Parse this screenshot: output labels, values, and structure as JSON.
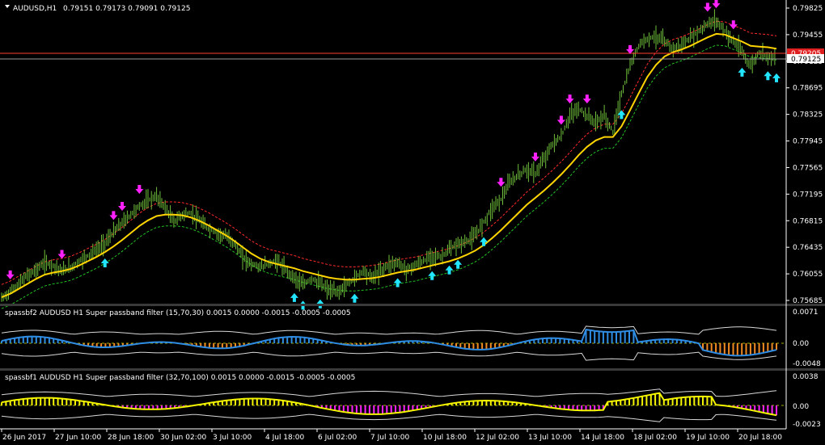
{
  "header": {
    "symbol": "AUDUSD,H1",
    "ohlc": "0.79151 0.79173 0.79091 0.79125"
  },
  "colors": {
    "background": "#000000",
    "candle": "#6fbf3a",
    "ma_yellow": "#ffd400",
    "band_upper": "#ff2a2a",
    "band_lower": "#22c022",
    "arrow_down": "#ff22ff",
    "arrow_up": "#22e5ff",
    "price_line": "#ff3b2f",
    "bid_line": "#9a9a9a",
    "sub1_pos": "#2f8de4",
    "sub1_neg": "#f08a22",
    "sub2_pos": "#f5f500",
    "sub2_neg": "#ff22ff",
    "envelope": "#d8d8d8",
    "zero_line": "#a0b000"
  },
  "main_axis": {
    "labels": [
      "0.79825",
      "0.79455",
      "0.79125",
      "0.78695",
      "0.78325",
      "0.77945",
      "0.77565",
      "0.77195",
      "0.76815",
      "0.76435",
      "0.76055",
      "0.75685"
    ],
    "price_tag_red": "0.79205",
    "price_tag_current": "0.79125"
  },
  "sub1": {
    "title": "spassbf2 AUDUSD H1 Super passband filter (15,70,30) 0.0015 0.0000 -0.0015 -0.0005 -0.0005",
    "axis_labels": [
      "0.0071",
      "0.00",
      "-0.0048"
    ]
  },
  "sub2": {
    "title": "spassbf1 AUDUSD H1 Super passband filter (32,70,100) 0.0015 0.0000 -0.0015 -0.0005 -0.0005",
    "axis_labels": [
      "0.0038",
      "0.00",
      "-0.0023"
    ]
  },
  "time_axis": [
    "26 Jun 2017",
    "27 Jun 10:00",
    "28 Jun 18:00",
    "30 Jun 02:00",
    "3 Jul 10:00",
    "4 Jul 18:00",
    "6 Jul 02:00",
    "7 Jul 10:00",
    "10 Jul 18:00",
    "12 Jul 02:00",
    "13 Jul 10:00",
    "14 Jul 18:00",
    "18 Jul 02:00",
    "19 Jul 10:00",
    "20 Jul 18:00"
  ],
  "chart_data": {
    "type": "line",
    "title": "AUDUSD,H1",
    "ylim": [
      0.75685,
      0.79825
    ],
    "x_labels": [
      "26 Jun 2017",
      "27 Jun 10:00",
      "28 Jun 18:00",
      "30 Jun 02:00",
      "3 Jul 10:00",
      "4 Jul 18:00",
      "6 Jul 02:00",
      "7 Jul 10:00",
      "10 Jul 18:00",
      "12 Jul 02:00",
      "13 Jul 10:00",
      "14 Jul 18:00",
      "18 Jul 02:00",
      "19 Jul 10:00",
      "20 Jul 18:00"
    ],
    "price": [
      0.7571,
      0.7581,
      0.7592,
      0.7604,
      0.7612,
      0.7622,
      0.7618,
      0.761,
      0.7615,
      0.7624,
      0.7632,
      0.764,
      0.765,
      0.7665,
      0.7678,
      0.769,
      0.7702,
      0.771,
      0.7716,
      0.77,
      0.768,
      0.769,
      0.7692,
      0.7681,
      0.767,
      0.7664,
      0.766,
      0.765,
      0.763,
      0.762,
      0.7616,
      0.762,
      0.7625,
      0.7611,
      0.7601,
      0.759,
      0.76,
      0.7592,
      0.7583,
      0.758,
      0.759,
      0.76,
      0.7611,
      0.7601,
      0.761,
      0.762,
      0.7622,
      0.7612,
      0.7618,
      0.7624,
      0.7632,
      0.763,
      0.764,
      0.7648,
      0.7652,
      0.766,
      0.768,
      0.77,
      0.7712,
      0.7735,
      0.7746,
      0.7754,
      0.7748,
      0.7769,
      0.779,
      0.78,
      0.783,
      0.784,
      0.783,
      0.782,
      0.783,
      0.7807,
      0.786,
      0.79,
      0.793,
      0.794,
      0.7942,
      0.7935,
      0.7925,
      0.793,
      0.794,
      0.795,
      0.796,
      0.7965,
      0.795,
      0.7935,
      0.792,
      0.79,
      0.792,
      0.7915,
      0.7912
    ],
    "ma": [
      0.7573,
      0.7578,
      0.7585,
      0.7592,
      0.7599,
      0.7605,
      0.7608,
      0.761,
      0.7613,
      0.7618,
      0.7624,
      0.763,
      0.7637,
      0.7645,
      0.7654,
      0.7664,
      0.7674,
      0.7682,
      0.7688,
      0.769,
      0.769,
      0.7689,
      0.7686,
      0.7681,
      0.7675,
      0.7668,
      0.7661,
      0.7653,
      0.7644,
      0.7635,
      0.7628,
      0.7623,
      0.762,
      0.7617,
      0.7614,
      0.761,
      0.7607,
      0.7604,
      0.7601,
      0.7599,
      0.7598,
      0.7598,
      0.7599,
      0.76,
      0.7602,
      0.7605,
      0.7608,
      0.761,
      0.7612,
      0.7615,
      0.7618,
      0.7621,
      0.7624,
      0.7628,
      0.7633,
      0.7639,
      0.7647,
      0.7657,
      0.7668,
      0.768,
      0.7692,
      0.7704,
      0.7714,
      0.7724,
      0.7735,
      0.7747,
      0.776,
      0.7774,
      0.7786,
      0.7795,
      0.78,
      0.78,
      0.7815,
      0.7838,
      0.7862,
      0.7885,
      0.7902,
      0.7914,
      0.792,
      0.7924,
      0.7929,
      0.7935,
      0.7941,
      0.7946,
      0.7945,
      0.794,
      0.7935,
      0.7929,
      0.7928,
      0.7927,
      0.7925
    ],
    "up_arrows_bar": [
      12,
      34,
      35,
      37,
      41,
      46,
      50,
      52,
      53,
      56,
      72,
      86,
      89,
      90
    ],
    "down_arrows_bar": [
      1,
      7,
      13,
      14,
      16,
      58,
      62,
      65,
      66,
      68,
      73,
      82,
      83,
      85
    ]
  }
}
